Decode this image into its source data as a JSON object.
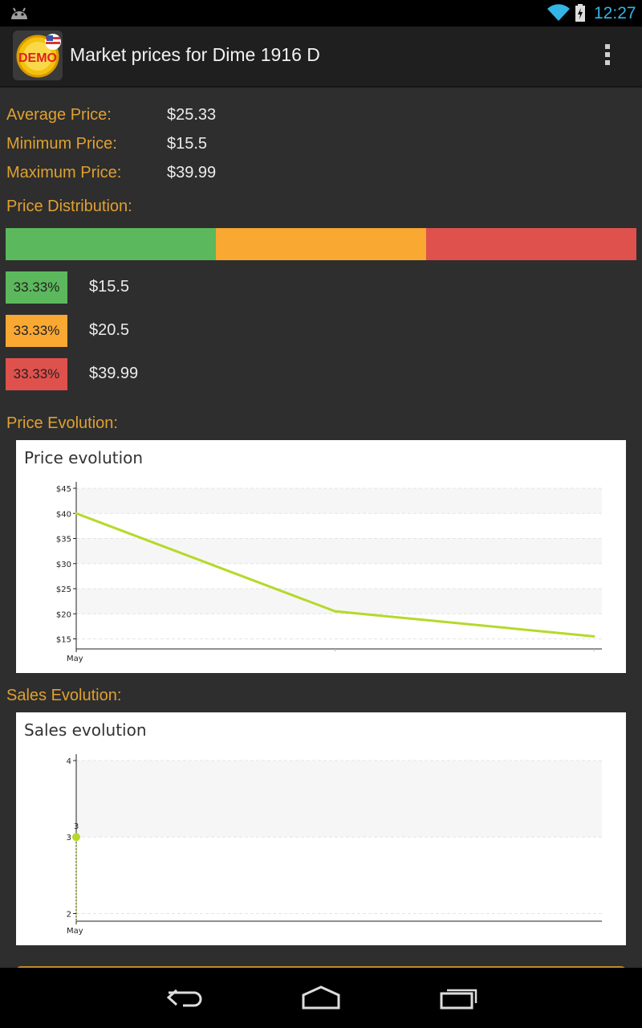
{
  "status_bar": {
    "time": "12:27",
    "icons": [
      "android-debug-icon",
      "wifi-icon",
      "battery-charging-icon"
    ]
  },
  "action_bar": {
    "app_icon_text": "DEMO",
    "title": "Market prices for Dime 1916 D"
  },
  "prices": {
    "average_label": "Average Price:",
    "average_value": "$25.33",
    "minimum_label": "Minimum Price:",
    "minimum_value": "$15.5",
    "maximum_label": "Maximum Price:",
    "maximum_value": "$39.99"
  },
  "distribution": {
    "title": "Price Distribution:",
    "items": [
      {
        "percent": "33.33%",
        "price": "$15.5",
        "color": "#5cb85c"
      },
      {
        "percent": "33.33%",
        "price": "$20.5",
        "color": "#f9a832"
      },
      {
        "percent": "33.33%",
        "price": "$39.99",
        "color": "#df514c"
      }
    ]
  },
  "price_evolution": {
    "section_title": "Price Evolution:",
    "chart_data": {
      "type": "line",
      "title": "Price evolution",
      "x": [
        0,
        1,
        2
      ],
      "xtick_labels": [
        "May"
      ],
      "values": [
        40,
        20.5,
        15.5
      ],
      "yticks": [
        "$15",
        "$20",
        "$25",
        "$30",
        "$35",
        "$40",
        "$45"
      ],
      "ytick_values": [
        15,
        20,
        25,
        30,
        35,
        40,
        45
      ],
      "ylim": [
        13,
        45
      ],
      "line_color": "#b5d92a"
    }
  },
  "sales_evolution": {
    "section_title": "Sales Evolution:",
    "chart_data": {
      "type": "scatter",
      "title": "Sales evolution",
      "xtick_labels": [
        "May"
      ],
      "values": [
        3
      ],
      "point_labels": [
        "3"
      ],
      "yticks": [
        "2",
        "3",
        "4"
      ],
      "ytick_values": [
        2,
        3,
        4
      ],
      "ylim": [
        1.9,
        4
      ],
      "point_color": "#b5d92a"
    }
  }
}
